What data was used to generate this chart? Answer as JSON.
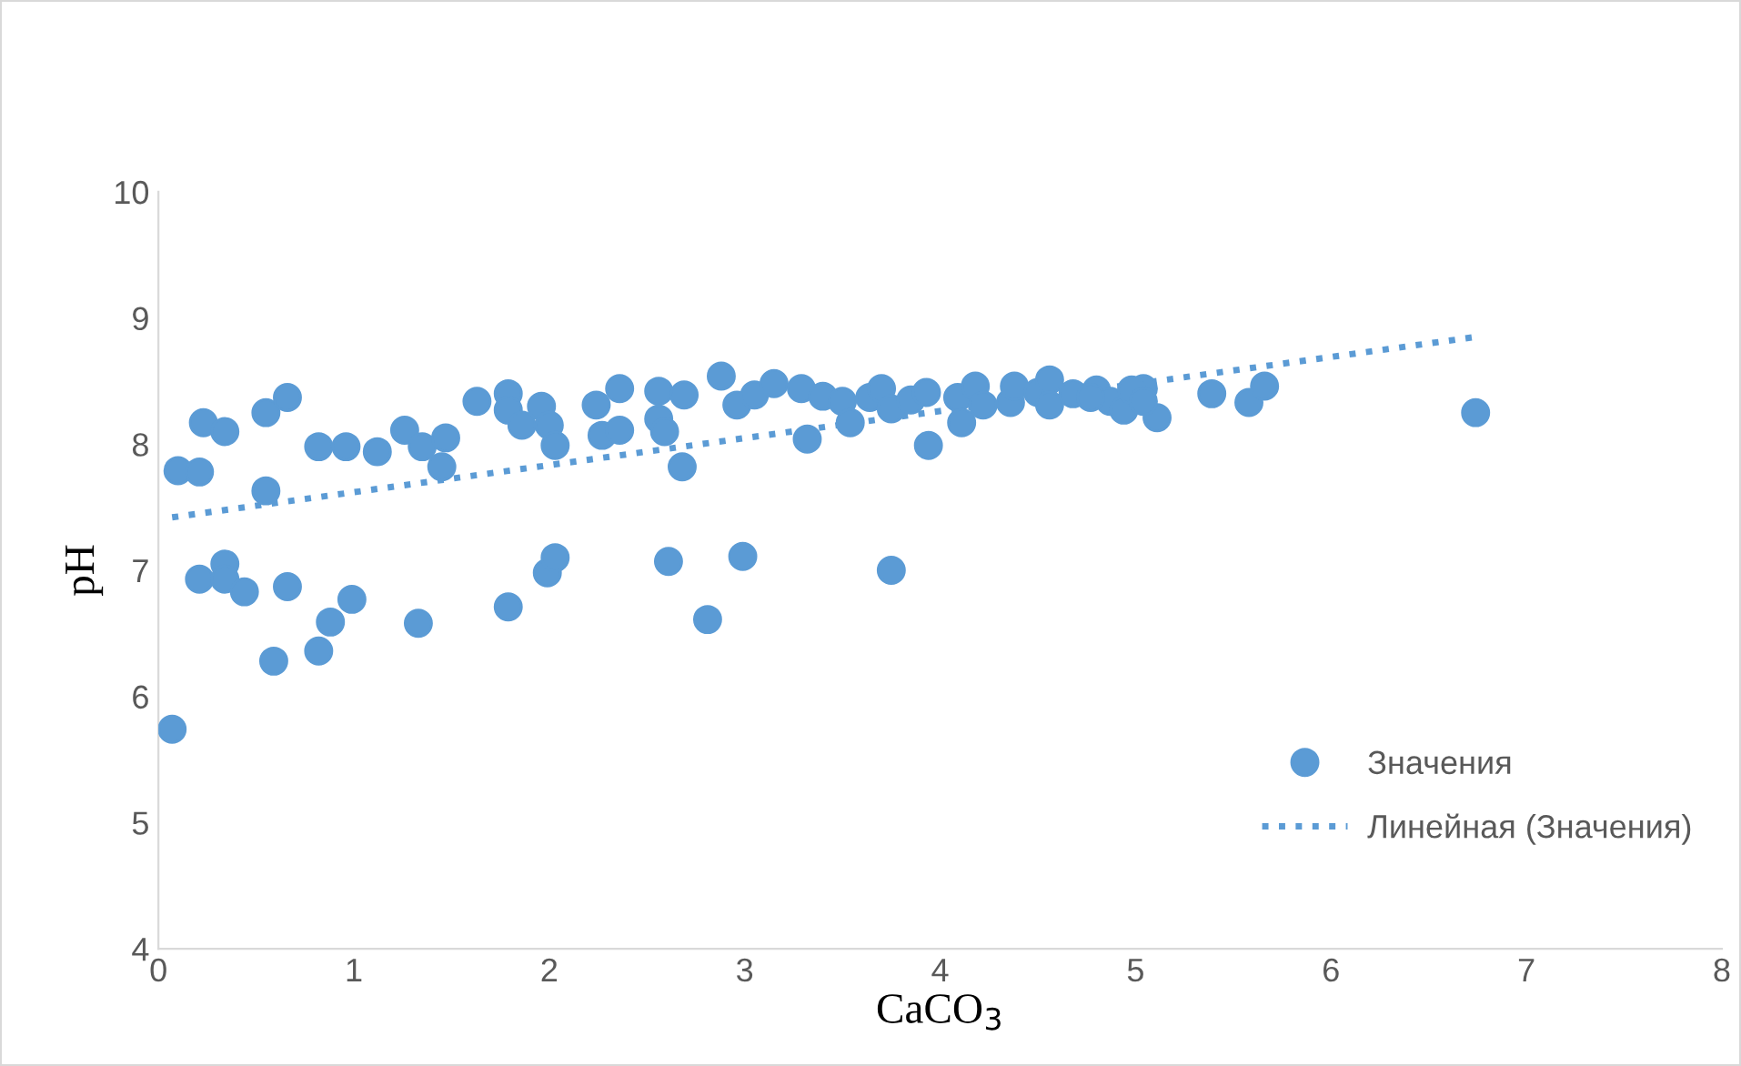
{
  "chart_data": {
    "type": "scatter",
    "xlabel": "CaCO$_{3}$",
    "ylabel": "pH",
    "xlim": [
      0,
      8
    ],
    "ylim": [
      4,
      10
    ],
    "xticks": [
      0,
      1,
      2,
      3,
      4,
      5,
      6,
      7,
      8
    ],
    "yticks": [
      4,
      5,
      6,
      7,
      8,
      9,
      10
    ],
    "grid": false,
    "legend": "right",
    "marker": "circle",
    "series": [
      {
        "name": "Значения",
        "color": "#5b9bd5",
        "x": [
          0.07,
          0.1,
          0.21,
          0.23,
          0.34,
          0.21,
          0.34,
          0.34,
          0.44,
          0.55,
          0.66,
          0.55,
          0.66,
          0.59,
          0.82,
          0.88,
          0.99,
          0.82,
          0.96,
          1.12,
          1.26,
          1.35,
          1.45,
          1.47,
          1.33,
          1.63,
          1.79,
          1.79,
          1.86,
          1.96,
          2.0,
          2.03,
          1.79,
          1.99,
          2.03,
          2.24,
          2.27,
          2.36,
          2.36,
          2.56,
          2.56,
          2.59,
          2.69,
          2.68,
          2.61,
          2.81,
          2.88,
          2.96,
          3.05,
          2.99,
          3.15,
          3.29,
          3.32,
          3.4,
          3.5,
          3.54,
          3.64,
          3.7,
          3.75,
          3.75,
          3.85,
          3.93,
          3.94,
          4.09,
          4.11,
          4.18,
          4.22,
          4.36,
          4.38,
          4.5,
          4.56,
          4.56,
          4.68,
          4.8,
          4.87,
          4.94,
          5.04,
          5.11,
          5.39,
          5.58,
          5.66,
          6.74,
          4.77,
          4.98,
          5.04
        ],
        "values": [
          5.74,
          7.79,
          7.78,
          8.17,
          8.1,
          6.93,
          7.05,
          6.93,
          6.83,
          8.25,
          8.37,
          7.63,
          6.87,
          6.28,
          6.36,
          6.59,
          6.77,
          7.98,
          7.98,
          7.94,
          8.11,
          7.98,
          7.82,
          8.05,
          6.58,
          8.34,
          8.4,
          8.27,
          8.15,
          8.3,
          8.15,
          7.99,
          6.71,
          6.98,
          7.1,
          8.31,
          8.07,
          8.44,
          8.11,
          8.42,
          8.2,
          8.1,
          8.39,
          7.82,
          7.07,
          6.61,
          8.54,
          8.31,
          8.39,
          7.11,
          8.48,
          8.44,
          8.04,
          8.38,
          8.34,
          8.17,
          8.37,
          8.44,
          8.28,
          7.0,
          8.35,
          8.41,
          7.99,
          8.37,
          8.17,
          8.46,
          8.31,
          8.33,
          8.46,
          8.41,
          8.51,
          8.31,
          8.4,
          8.43,
          8.34,
          8.27,
          8.44,
          8.21,
          8.4,
          8.33,
          8.46,
          8.25,
          8.37,
          8.43,
          8.34
        ]
      },
      {
        "name": "Линейная (Значения)",
        "type": "line",
        "color": "#5b9bd5",
        "line_style": "dotted",
        "marker": "none",
        "x": [
          0.07,
          6.74
        ],
        "values": [
          7.42,
          8.85
        ]
      }
    ]
  }
}
